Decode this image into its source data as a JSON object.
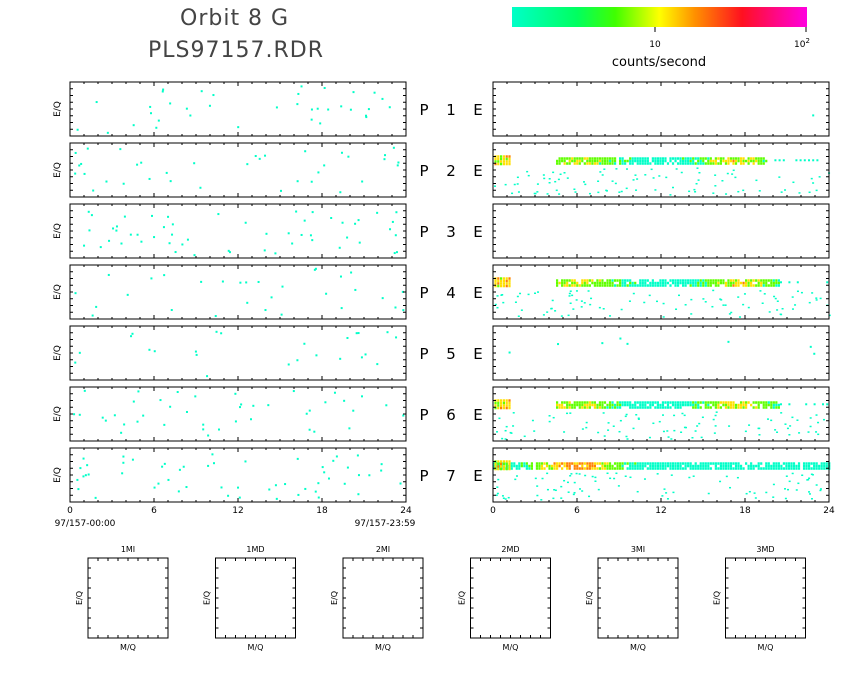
{
  "title": {
    "line1": "Orbit 8 G",
    "line2": "PLS97157.RDR"
  },
  "colorbar": {
    "label": "counts/second",
    "tick_10": "10",
    "tick_100_base": "10",
    "tick_100_exp": "2",
    "scale": "log",
    "range": [
      1,
      100
    ],
    "colors": [
      "#00ffc8",
      "#00ff30",
      "#ffff00",
      "#ff3000",
      "#ff00d0"
    ]
  },
  "chart_data": {
    "type": "heatmap",
    "ylabel": "E/Q",
    "x_ticks": [
      "0",
      "6",
      "12",
      "18",
      "24"
    ],
    "xlim": [
      0,
      24
    ],
    "start_label": "97/157-00:00",
    "end_label": "97/157-23:59",
    "rows": [
      {
        "p": "P",
        "n": "1",
        "e": "E",
        "left_density": 0.06,
        "right": {
          "activity": "none"
        }
      },
      {
        "p": "P",
        "n": "2",
        "e": "E",
        "left_density": 0.06,
        "right": {
          "activity": "band",
          "band_start_h": 4.5,
          "band_end_h": 19.5,
          "peak_h": 17.2,
          "tail_to_h": 24
        }
      },
      {
        "p": "P",
        "n": "3",
        "e": "E",
        "left_density": 0.09,
        "right": {
          "activity": "none"
        }
      },
      {
        "p": "P",
        "n": "4",
        "e": "E",
        "left_density": 0.05,
        "right": {
          "activity": "band",
          "band_start_h": 4.5,
          "band_end_h": 20.5,
          "peak_h": 17.5,
          "tail_to_h": 24
        }
      },
      {
        "p": "P",
        "n": "5",
        "e": "E",
        "left_density": 0.04,
        "right": {
          "activity": "sparse"
        }
      },
      {
        "p": "P",
        "n": "6",
        "e": "E",
        "left_density": 0.07,
        "right": {
          "activity": "band",
          "band_start_h": 4.5,
          "band_end_h": 20.5,
          "peak_h": 17.5,
          "tail_to_h": 24
        }
      },
      {
        "p": "P",
        "n": "7",
        "e": "E",
        "left_density": 0.09,
        "right": {
          "activity": "band",
          "band_start_h": 0,
          "band_end_h": 24,
          "peak_h": 5.5,
          "tail_to_h": 24
        }
      }
    ],
    "mass_panels": [
      {
        "label": "1MI",
        "xlabel": "M/Q",
        "ylabel": "E/Q"
      },
      {
        "label": "1MD",
        "xlabel": "M/Q",
        "ylabel": "E/Q"
      },
      {
        "label": "2MI",
        "xlabel": "M/Q",
        "ylabel": "E/Q"
      },
      {
        "label": "2MD",
        "xlabel": "M/Q",
        "ylabel": "E/Q"
      },
      {
        "label": "3MI",
        "xlabel": "M/Q",
        "ylabel": "E/Q"
      },
      {
        "label": "3MD",
        "xlabel": "M/Q",
        "ylabel": "E/Q"
      }
    ]
  }
}
